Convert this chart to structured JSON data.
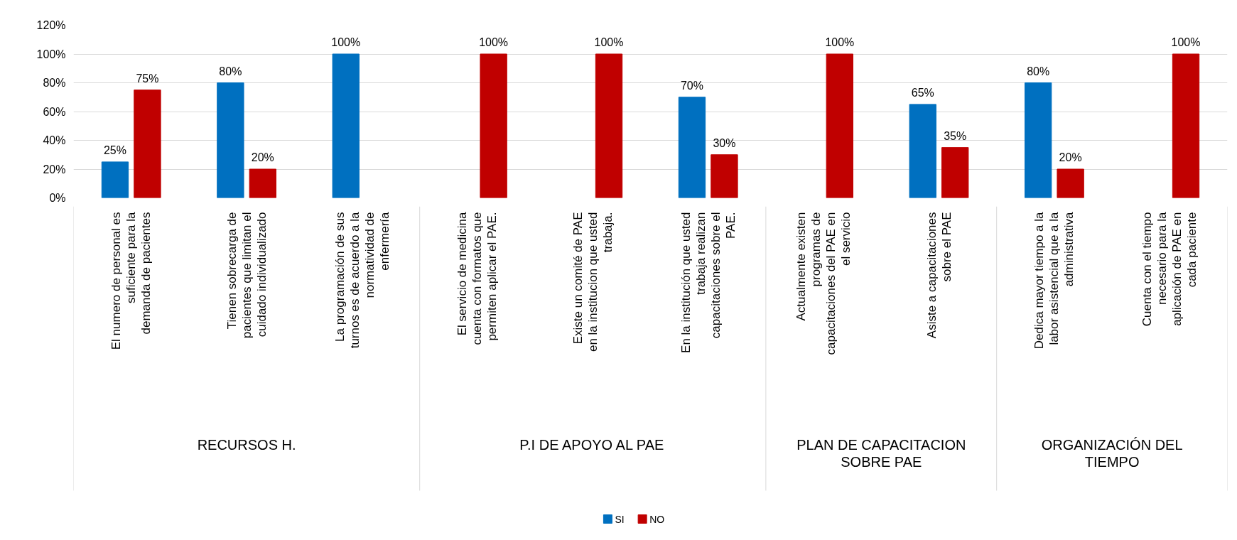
{
  "chart_data": {
    "type": "bar",
    "categories": [
      "El numero de personal es\nsuficiente para la\ndemanda de pacientes",
      "Tienen sobrecarga de\npacientes que limitan el\ncuidado individualizado",
      "La programación de sus\nturnos es de acuerdo a la\nnormatividad de\nenfermería",
      "El servicio de medicina\ncuenta con formatos que\npermiten aplicar el PAE.",
      "Existe un comité de PAE\nen la institucion que usted\ntrabaja.",
      "En la institución que usted\ntrabaja realizan\ncapacitaciones sobre el\nPAE.",
      "Actualmente existen\nprogramas de\ncapacitaciones del PAE en\nel servicio",
      "Asiste a capacitaciones\nsobre el PAE",
      "Dedica mayor tiempo a la\nlabor asistencial que a la\nadministrativa",
      "Cuenta con el tiempo\nnecesario para la\naplicación de PAE en\ncada paciente"
    ],
    "series": [
      {
        "name": "SI",
        "color": "#0070c0",
        "values": [
          25,
          80,
          100,
          null,
          null,
          70,
          null,
          65,
          80,
          null
        ],
        "value_labels": [
          "25%",
          "80%",
          "100%",
          null,
          null,
          "70%",
          null,
          "65%",
          "80%",
          null
        ]
      },
      {
        "name": "NO",
        "color": "#c00000",
        "values": [
          75,
          20,
          null,
          100,
          100,
          30,
          100,
          35,
          20,
          100
        ],
        "value_labels": [
          "75%",
          "20%",
          null,
          "100%",
          "100%",
          "30%",
          "100%",
          "35%",
          "20%",
          "100%"
        ]
      }
    ],
    "ylim": [
      0,
      120
    ],
    "yticks": [
      {
        "value": 0,
        "label": "0%"
      },
      {
        "value": 20,
        "label": "20%"
      },
      {
        "value": 40,
        "label": "40%"
      },
      {
        "value": 60,
        "label": "60%"
      },
      {
        "value": 80,
        "label": "80%"
      },
      {
        "value": 100,
        "label": "100%"
      },
      {
        "value": 120,
        "label": "120%"
      }
    ],
    "grid": "y",
    "legend": "bottom",
    "annotations": [
      "RECURSOS H.",
      "P.I DE APOYO AL PAE",
      "PLAN DE CAPACITACION\nSOBRE PAE",
      "ORGANIZACIÓN DEL\nTIEMPO"
    ]
  }
}
